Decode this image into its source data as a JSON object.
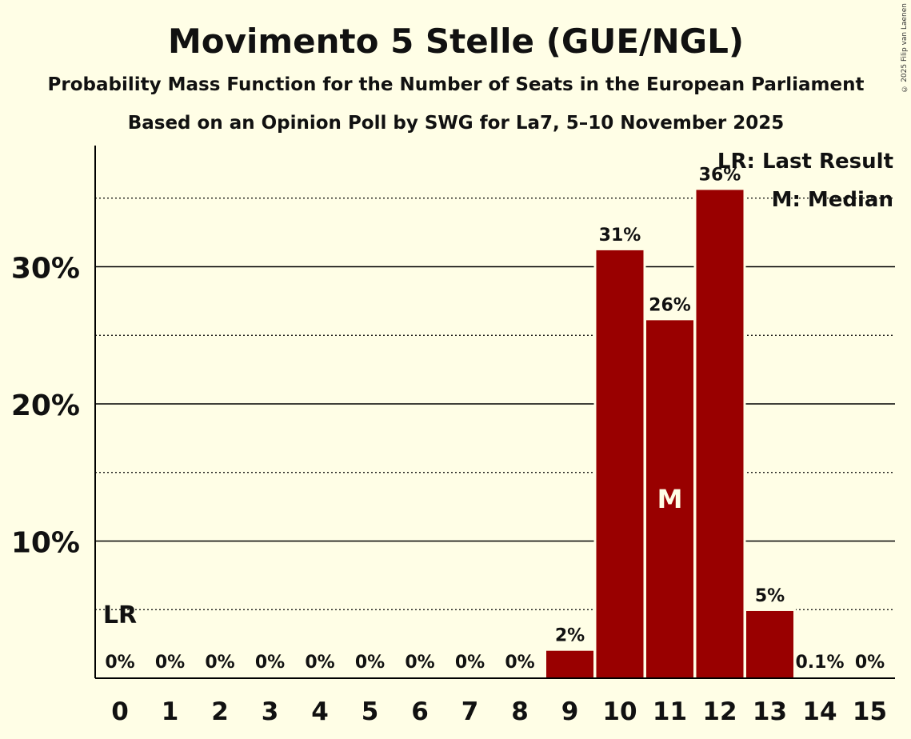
{
  "chart_data": {
    "type": "bar",
    "title": "Movimento 5 Stelle (GUE/NGL)",
    "subtitle": "Probability Mass Function for the Number of Seats in the European Parliament",
    "subtitle2": "Based on an Opinion Poll by SWG for La7, 5–10 November 2025",
    "categories": [
      "0",
      "1",
      "2",
      "3",
      "4",
      "5",
      "6",
      "7",
      "8",
      "9",
      "10",
      "11",
      "12",
      "13",
      "14",
      "15"
    ],
    "values": [
      0,
      0,
      0,
      0,
      0,
      0,
      0,
      0,
      0,
      2,
      31.2,
      26.1,
      35.6,
      4.9,
      0.1,
      0
    ],
    "data_labels": [
      "0%",
      "0%",
      "0%",
      "0%",
      "0%",
      "0%",
      "0%",
      "0%",
      "0%",
      "2%",
      "31%",
      "26%",
      "36%",
      "5%",
      "0.1%",
      "0%"
    ],
    "ylim": [
      0,
      38
    ],
    "yticks": [
      10,
      20,
      30
    ],
    "ytick_labels": [
      "10%",
      "20%",
      "30%"
    ],
    "minor_gridlines": [
      5,
      15,
      25,
      35
    ],
    "bar_color": "#990000",
    "last_result_seat": "0",
    "last_result_marker": "LR",
    "median_seat": "11",
    "median_marker": "M",
    "legend": [
      "LR: Last Result",
      "M: Median"
    ],
    "legend_position": "top-right"
  },
  "copyright": "© 2025 Filip van Laenen"
}
